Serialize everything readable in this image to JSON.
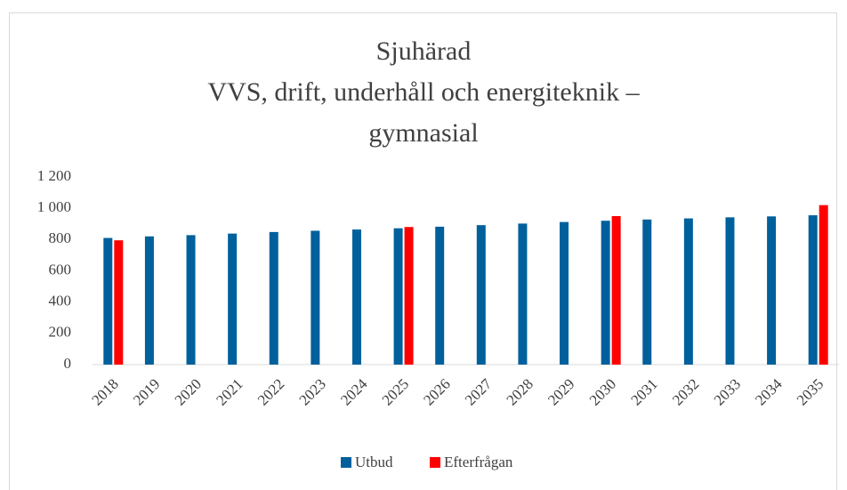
{
  "chart_data": {
    "type": "bar",
    "title": [
      "Sjuhärad",
      "VVS, drift, underhåll och energiteknik –",
      "gymnasial"
    ],
    "categories": [
      "2018",
      "2019",
      "2020",
      "2021",
      "2022",
      "2023",
      "2024",
      "2025",
      "2026",
      "2027",
      "2028",
      "2029",
      "2030",
      "2031",
      "2032",
      "2033",
      "2034",
      "2035"
    ],
    "series": [
      {
        "name": "Utbud",
        "color": "#00609c",
        "values": [
          810,
          820,
          828,
          838,
          848,
          856,
          864,
          872,
          882,
          892,
          902,
          912,
          920,
          928,
          935,
          942,
          948,
          955
        ]
      },
      {
        "name": "Efterfrågan",
        "color": "#ff0000",
        "values": [
          795,
          null,
          null,
          null,
          null,
          null,
          null,
          880,
          null,
          null,
          null,
          null,
          950,
          null,
          null,
          null,
          null,
          1020
        ]
      }
    ],
    "ylim": [
      0,
      1200
    ],
    "yticks": [
      0,
      200,
      400,
      600,
      800,
      {
        "value": 1000,
        "label": "1 000"
      },
      {
        "value": 1200,
        "label": "1 200"
      }
    ],
    "grid": false,
    "legend": "bottom"
  }
}
